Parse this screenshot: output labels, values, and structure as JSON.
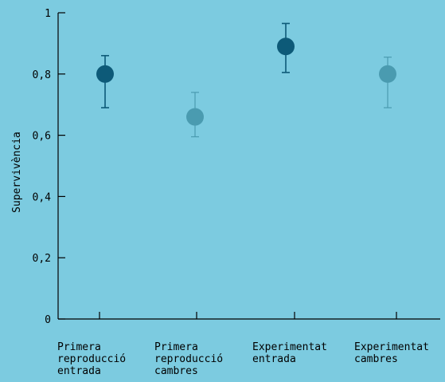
{
  "colors": {
    "background": "#7ccbe0",
    "dark_point": "#0d5a78",
    "light_point": "#4a9bb0",
    "axis": "#000000"
  },
  "chart_data": {
    "type": "scatter",
    "ylabel": "Supervivència",
    "xlabel": "",
    "ylim": [
      0,
      1
    ],
    "y_ticks": [
      {
        "value": 0,
        "label": "0"
      },
      {
        "value": 0.2,
        "label": "0,2"
      },
      {
        "value": 0.4,
        "label": "0,4"
      },
      {
        "value": 0.6,
        "label": "0,6"
      },
      {
        "value": 0.8,
        "label": "0,8"
      },
      {
        "value": 1,
        "label": "1"
      }
    ],
    "grid": false,
    "legend": "none",
    "categories": [
      {
        "lines": [
          "Primera",
          "reproducció",
          "entrada"
        ],
        "value": 0.8,
        "lower": 0.69,
        "upper": 0.86,
        "shade": "dark"
      },
      {
        "lines": [
          "Primera",
          "reproducció",
          "cambres"
        ],
        "value": 0.66,
        "lower": 0.595,
        "upper": 0.74,
        "shade": "light"
      },
      {
        "lines": [
          "Experimentat",
          "entrada"
        ],
        "value": 0.89,
        "lower": 0.805,
        "upper": 0.965,
        "shade": "dark"
      },
      {
        "lines": [
          "Experimentat",
          "cambres"
        ],
        "value": 0.8,
        "lower": 0.69,
        "upper": 0.855,
        "shade": "light"
      }
    ]
  }
}
